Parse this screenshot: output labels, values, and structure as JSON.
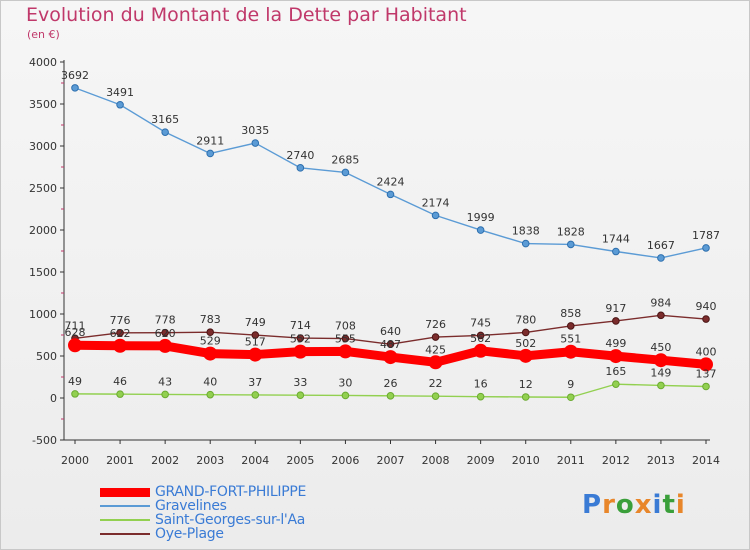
{
  "title": "Evolution du Montant de la Dette par Habitant",
  "unit": "(en €)",
  "logo": "Proxiti",
  "chart_data": {
    "type": "line",
    "title": "Evolution du Montant de la Dette par Habitant",
    "subtitle": "(en €)",
    "x": [
      2000,
      2001,
      2002,
      2003,
      2004,
      2005,
      2006,
      2007,
      2008,
      2009,
      2010,
      2011,
      2012,
      2013,
      2014
    ],
    "ylim": [
      -500,
      4000
    ],
    "yticks": [
      -500,
      0,
      500,
      1000,
      1500,
      2000,
      2500,
      3000,
      3500,
      4000
    ],
    "grid": false,
    "legend_position": "bottom-left",
    "series": [
      {
        "name": "GRAND-FORT-PHILIPPE",
        "color": "#ff0000",
        "values": [
          628,
          622,
          620,
          529,
          517,
          552,
          555,
          487,
          425,
          562,
          502,
          551,
          499,
          450,
          400
        ]
      },
      {
        "name": "Gravelines",
        "color": "#5b9bd5",
        "values": [
          3692,
          3491,
          3165,
          2911,
          3035,
          2740,
          2685,
          2424,
          2174,
          1999,
          1838,
          1828,
          1744,
          1667,
          1787
        ]
      },
      {
        "name": "Saint-Georges-sur-l'Aa",
        "color": "#92d050",
        "values": [
          49,
          46,
          43,
          40,
          37,
          33,
          30,
          26,
          22,
          16,
          12,
          9,
          165,
          149,
          137
        ]
      },
      {
        "name": "Oye-Plage",
        "color": "#7b2c2c",
        "values": [
          711,
          776,
          778,
          783,
          749,
          714,
          708,
          640,
          726,
          745,
          780,
          858,
          917,
          984,
          940
        ]
      }
    ]
  }
}
